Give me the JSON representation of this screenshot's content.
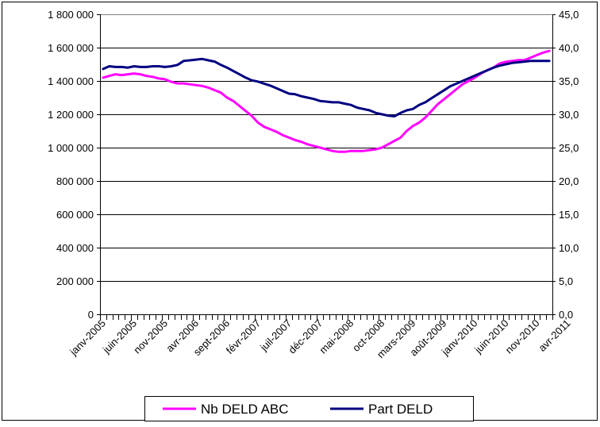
{
  "chart_data": {
    "type": "line",
    "title": "",
    "xlabel": "",
    "ylabel": "",
    "y2label": "",
    "start_month": "2005-01",
    "x_tick_labels": [
      "janv-2005",
      "juin-2005",
      "nov-2005",
      "avr-2006",
      "sept-2006",
      "févr-2007",
      "juil-2007",
      "déc-2007",
      "mai-2008",
      "oct-2008",
      "mars-2009",
      "août-2009",
      "janv-2010",
      "juin-2010",
      "nov-2010",
      "avr-2011"
    ],
    "y_left": {
      "lim": [
        0,
        1800000
      ],
      "ticks": [
        "0",
        "200 000",
        "400 000",
        "600 000",
        "800 000",
        "1 000 000",
        "1 200 000",
        "1 400 000",
        "1 600 000",
        "1 800 000"
      ]
    },
    "y_right": {
      "lim": [
        0,
        45
      ],
      "ticks": [
        "0,0",
        "5,0",
        "10,0",
        "15,0",
        "20,0",
        "25,0",
        "30,0",
        "35,0",
        "40,0",
        "45,0"
      ]
    },
    "legend_position": "bottom",
    "grid": "horizontal",
    "series": [
      {
        "name": "Nb DELD ABC",
        "axis": "left",
        "color": "#FF00FF",
        "values": [
          1420000,
          1430000,
          1440000,
          1435000,
          1440000,
          1445000,
          1440000,
          1430000,
          1425000,
          1415000,
          1410000,
          1395000,
          1385000,
          1385000,
          1380000,
          1375000,
          1370000,
          1360000,
          1345000,
          1330000,
          1300000,
          1280000,
          1250000,
          1220000,
          1190000,
          1150000,
          1125000,
          1110000,
          1095000,
          1075000,
          1060000,
          1045000,
          1035000,
          1020000,
          1010000,
          1000000,
          990000,
          980000,
          975000,
          975000,
          980000,
          980000,
          980000,
          985000,
          990000,
          1000000,
          1020000,
          1040000,
          1060000,
          1100000,
          1130000,
          1150000,
          1180000,
          1220000,
          1260000,
          1290000,
          1320000,
          1350000,
          1380000,
          1400000,
          1420000,
          1445000,
          1465000,
          1480000,
          1505000,
          1515000,
          1520000,
          1525000,
          1525000,
          1540000,
          1555000,
          1570000,
          1580000
        ]
      },
      {
        "name": "Part DELD",
        "axis": "right",
        "color": "#000080",
        "values": [
          36.8,
          37.2,
          37.1,
          37.1,
          37.0,
          37.2,
          37.1,
          37.1,
          37.2,
          37.2,
          37.1,
          37.2,
          37.4,
          38.0,
          38.1,
          38.2,
          38.3,
          38.1,
          37.9,
          37.4,
          37.0,
          36.5,
          36.0,
          35.5,
          35.1,
          34.9,
          34.6,
          34.3,
          33.9,
          33.5,
          33.1,
          33.0,
          32.7,
          32.5,
          32.3,
          32.0,
          31.9,
          31.8,
          31.8,
          31.6,
          31.4,
          31.0,
          30.8,
          30.6,
          30.2,
          30.0,
          29.8,
          29.7,
          30.2,
          30.6,
          30.8,
          31.4,
          31.8,
          32.4,
          33.0,
          33.6,
          34.2,
          34.6,
          35.0,
          35.4,
          35.8,
          36.2,
          36.6,
          37.0,
          37.3,
          37.5,
          37.7,
          37.8,
          37.9,
          38.0,
          38.0,
          38.0,
          38.0
        ]
      }
    ]
  }
}
